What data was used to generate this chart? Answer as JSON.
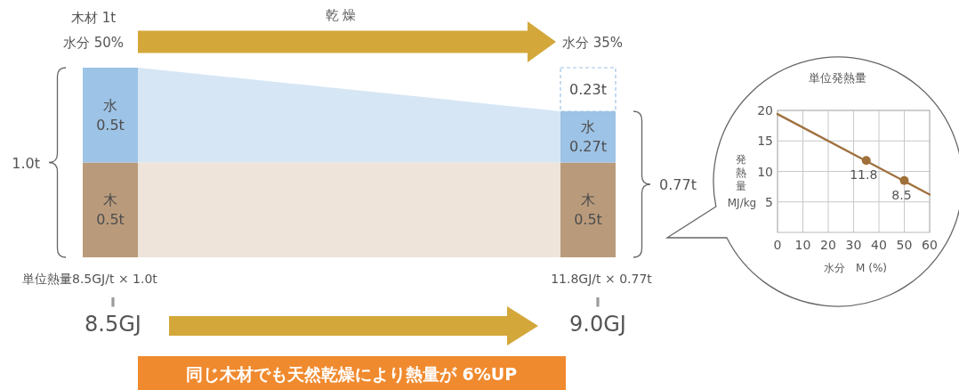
{
  "chart_data": [
    {
      "type": "bar",
      "stacked": true,
      "categories": [
        "木材 1t\n水分 50%",
        "水分 35%"
      ],
      "series": [
        {
          "name": "木",
          "color": "#b99b7c",
          "values": [
            0.5,
            0.5
          ],
          "value_labels": [
            "0.5t",
            "0.5t"
          ]
        },
        {
          "name": "水",
          "color": "#9dc3e6",
          "values": [
            0.5,
            0.27
          ],
          "value_labels": [
            "0.5t",
            "0.27t"
          ]
        },
        {
          "color": "#9dc3e6",
          "line_style": "dashed",
          "values": [
            null,
            0.23
          ],
          "value_labels": [
            null,
            "0.23t"
          ]
        }
      ],
      "bands": [
        {
          "axis": "y",
          "from": 0,
          "to": 0.5,
          "color": "#eee4d9"
        }
      ],
      "annotations": [
        "乾燥",
        "単位熱量8.5GJ/t × 1.0t",
        "‖",
        "8.5GJ",
        "11.8GJ/t × 0.77t",
        "‖",
        "9.0GJ",
        "同じ木材でも天然乾燥により熱量が 6%UP",
        "1.0t",
        "0.77t"
      ]
    },
    {
      "type": "line",
      "title": "単位発熱量",
      "xlabel": "水分　M (%)",
      "ylabel": "発熱量\nMJ/kg",
      "xlim": [
        0,
        60
      ],
      "xticks": [
        0,
        10,
        20,
        30,
        40,
        50,
        60
      ],
      "ylim": [
        0,
        20
      ],
      "yticks": [
        5,
        10,
        15,
        20
      ],
      "grid": true,
      "series": [
        {
          "type": "line",
          "marker": "none",
          "color": "#a0713f",
          "x": [
            0,
            60
          ],
          "values": [
            19.4,
            6.2
          ]
        },
        {
          "type": "scatter",
          "marker": "circle",
          "color": "#a0703a",
          "x": [
            35,
            50
          ],
          "values": [
            11.8,
            8.5
          ],
          "value_labels": [
            "11.8",
            "8.5"
          ]
        }
      ]
    }
  ]
}
